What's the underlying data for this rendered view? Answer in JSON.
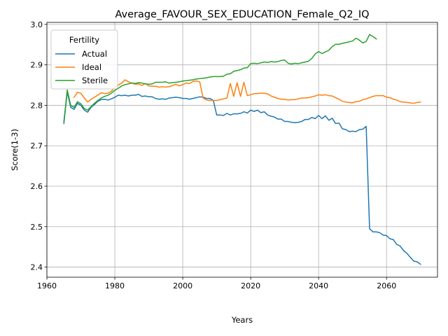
{
  "chart_data": {
    "type": "line",
    "title": "Average_FAVOUR_SEX_EDUCATION_Female_Q2_IQ",
    "xlabel": "Years",
    "ylabel": "Score(1-3)",
    "xlim": [
      1960,
      2075
    ],
    "ylim": [
      2.375,
      3.005
    ],
    "xticks": [
      1960,
      1980,
      2000,
      2020,
      2040,
      2060
    ],
    "xtick_labels": [
      "1960",
      "1980",
      "2000",
      "2020",
      "2040",
      "2060"
    ],
    "yticks": [
      2.4,
      2.5,
      2.6,
      2.7,
      2.8,
      2.9,
      3.0
    ],
    "ytick_labels": [
      "2.4",
      "2.5",
      "2.6",
      "2.7",
      "2.8",
      "2.9",
      "3.0"
    ],
    "grid": true,
    "legend": {
      "title": "Fertility",
      "position": "top-left"
    },
    "series": [
      {
        "name": "Actual",
        "color": "#1f77b4",
        "points": [
          [
            1965,
            2.755
          ],
          [
            1966,
            2.833
          ],
          [
            1967,
            2.795
          ],
          [
            1968,
            2.79
          ],
          [
            1969,
            2.805
          ],
          [
            1970,
            2.8
          ],
          [
            1971,
            2.788
          ],
          [
            1972,
            2.783
          ],
          [
            1973,
            2.795
          ],
          [
            1974,
            2.802
          ],
          [
            1975,
            2.81
          ],
          [
            1976,
            2.814
          ],
          [
            1977,
            2.815
          ],
          [
            1978,
            2.813
          ],
          [
            1979,
            2.816
          ],
          [
            1980,
            2.82
          ],
          [
            1981,
            2.825
          ],
          [
            1982,
            2.824
          ],
          [
            1983,
            2.825
          ],
          [
            1984,
            2.823
          ],
          [
            1985,
            2.825
          ],
          [
            1986,
            2.825
          ],
          [
            1987,
            2.827
          ],
          [
            1988,
            2.822
          ],
          [
            1989,
            2.823
          ],
          [
            1990,
            2.821
          ],
          [
            1991,
            2.821
          ],
          [
            1992,
            2.817
          ],
          [
            1993,
            2.815
          ],
          [
            1994,
            2.816
          ],
          [
            1995,
            2.815
          ],
          [
            1996,
            2.818
          ],
          [
            1997,
            2.819
          ],
          [
            1998,
            2.82
          ],
          [
            1999,
            2.819
          ],
          [
            2000,
            2.817
          ],
          [
            2001,
            2.817
          ],
          [
            2002,
            2.815
          ],
          [
            2003,
            2.817
          ],
          [
            2004,
            2.819
          ],
          [
            2005,
            2.821
          ],
          [
            2006,
            2.82
          ],
          [
            2007,
            2.817
          ],
          [
            2008,
            2.817
          ],
          [
            2009,
            2.812
          ],
          [
            2010,
            2.776
          ],
          [
            2011,
            2.776
          ],
          [
            2012,
            2.775
          ],
          [
            2013,
            2.78
          ],
          [
            2014,
            2.776
          ],
          [
            2015,
            2.779
          ],
          [
            2016,
            2.779
          ],
          [
            2017,
            2.78
          ],
          [
            2018,
            2.784
          ],
          [
            2019,
            2.781
          ],
          [
            2020,
            2.788
          ],
          [
            2021,
            2.785
          ],
          [
            2022,
            2.788
          ],
          [
            2023,
            2.782
          ],
          [
            2024,
            2.784
          ],
          [
            2025,
            2.776
          ],
          [
            2026,
            2.773
          ],
          [
            2027,
            2.771
          ],
          [
            2028,
            2.766
          ],
          [
            2029,
            2.766
          ],
          [
            2030,
            2.76
          ],
          [
            2031,
            2.76
          ],
          [
            2032,
            2.758
          ],
          [
            2033,
            2.757
          ],
          [
            2034,
            2.758
          ],
          [
            2035,
            2.76
          ],
          [
            2036,
            2.765
          ],
          [
            2037,
            2.765
          ],
          [
            2038,
            2.77
          ],
          [
            2039,
            2.767
          ],
          [
            2040,
            2.775
          ],
          [
            2041,
            2.767
          ],
          [
            2042,
            2.774
          ],
          [
            2043,
            2.763
          ],
          [
            2044,
            2.768
          ],
          [
            2045,
            2.755
          ],
          [
            2046,
            2.756
          ],
          [
            2047,
            2.742
          ],
          [
            2048,
            2.74
          ],
          [
            2049,
            2.735
          ],
          [
            2050,
            2.736
          ],
          [
            2051,
            2.735
          ],
          [
            2052,
            2.74
          ],
          [
            2053,
            2.741
          ],
          [
            2054,
            2.748
          ],
          [
            2055,
            2.495
          ],
          [
            2056,
            2.487
          ],
          [
            2057,
            2.487
          ],
          [
            2058,
            2.485
          ],
          [
            2059,
            2.479
          ],
          [
            2060,
            2.478
          ],
          [
            2061,
            2.47
          ],
          [
            2062,
            2.468
          ],
          [
            2063,
            2.456
          ],
          [
            2064,
            2.452
          ],
          [
            2065,
            2.441
          ],
          [
            2066,
            2.434
          ],
          [
            2067,
            2.424
          ],
          [
            2068,
            2.415
          ],
          [
            2069,
            2.413
          ],
          [
            2070,
            2.407
          ]
        ]
      },
      {
        "name": "Ideal",
        "color": "#ff7f0e",
        "points": [
          [
            1968,
            2.82
          ],
          [
            1969,
            2.832
          ],
          [
            1970,
            2.83
          ],
          [
            1971,
            2.818
          ],
          [
            1972,
            2.808
          ],
          [
            1973,
            2.815
          ],
          [
            1974,
            2.82
          ],
          [
            1975,
            2.825
          ],
          [
            1976,
            2.831
          ],
          [
            1977,
            2.829
          ],
          [
            1978,
            2.83
          ],
          [
            1979,
            2.835
          ],
          [
            1980,
            2.845
          ],
          [
            1981,
            2.85
          ],
          [
            1982,
            2.855
          ],
          [
            1983,
            2.863
          ],
          [
            1984,
            2.858
          ],
          [
            1985,
            2.855
          ],
          [
            1986,
            2.852
          ],
          [
            1987,
            2.853
          ],
          [
            1988,
            2.849
          ],
          [
            1989,
            2.854
          ],
          [
            1990,
            2.848
          ],
          [
            1991,
            2.847
          ],
          [
            1992,
            2.847
          ],
          [
            1993,
            2.845
          ],
          [
            1994,
            2.846
          ],
          [
            1995,
            2.845
          ],
          [
            1996,
            2.846
          ],
          [
            1997,
            2.849
          ],
          [
            1998,
            2.852
          ],
          [
            1999,
            2.848
          ],
          [
            2000,
            2.851
          ],
          [
            2001,
            2.855
          ],
          [
            2002,
            2.854
          ],
          [
            2003,
            2.859
          ],
          [
            2004,
            2.86
          ],
          [
            2005,
            2.858
          ],
          [
            2006,
            2.818
          ],
          [
            2007,
            2.813
          ],
          [
            2008,
            2.812
          ],
          [
            2009,
            2.812
          ],
          [
            2010,
            2.812
          ],
          [
            2011,
            2.814
          ],
          [
            2012,
            2.816
          ],
          [
            2013,
            2.818
          ],
          [
            2014,
            2.854
          ],
          [
            2015,
            2.822
          ],
          [
            2016,
            2.856
          ],
          [
            2017,
            2.822
          ],
          [
            2018,
            2.857
          ],
          [
            2019,
            2.824
          ],
          [
            2020,
            2.826
          ],
          [
            2021,
            2.829
          ],
          [
            2022,
            2.829
          ],
          [
            2023,
            2.83
          ],
          [
            2024,
            2.83
          ],
          [
            2025,
            2.828
          ],
          [
            2026,
            2.823
          ],
          [
            2027,
            2.82
          ],
          [
            2028,
            2.817
          ],
          [
            2029,
            2.815
          ],
          [
            2030,
            2.815
          ],
          [
            2031,
            2.813
          ],
          [
            2032,
            2.814
          ],
          [
            2033,
            2.814
          ],
          [
            2034,
            2.816
          ],
          [
            2035,
            2.818
          ],
          [
            2036,
            2.818
          ],
          [
            2037,
            2.819
          ],
          [
            2038,
            2.821
          ],
          [
            2039,
            2.823
          ],
          [
            2040,
            2.826
          ],
          [
            2041,
            2.825
          ],
          [
            2042,
            2.826
          ],
          [
            2043,
            2.824
          ],
          [
            2044,
            2.823
          ],
          [
            2045,
            2.819
          ],
          [
            2046,
            2.815
          ],
          [
            2047,
            2.81
          ],
          [
            2048,
            2.808
          ],
          [
            2049,
            2.807
          ],
          [
            2050,
            2.806
          ],
          [
            2051,
            2.809
          ],
          [
            2052,
            2.81
          ],
          [
            2053,
            2.814
          ],
          [
            2054,
            2.816
          ],
          [
            2055,
            2.819
          ],
          [
            2056,
            2.822
          ],
          [
            2057,
            2.824
          ],
          [
            2058,
            2.824
          ],
          [
            2059,
            2.824
          ],
          [
            2060,
            2.82
          ],
          [
            2061,
            2.819
          ],
          [
            2062,
            2.815
          ],
          [
            2063,
            2.813
          ],
          [
            2064,
            2.809
          ],
          [
            2065,
            2.808
          ],
          [
            2066,
            2.807
          ],
          [
            2067,
            2.806
          ],
          [
            2068,
            2.805
          ],
          [
            2069,
            2.807
          ],
          [
            2070,
            2.808
          ]
        ]
      },
      {
        "name": "Sterile",
        "color": "#2ca02c",
        "points": [
          [
            1965,
            2.76
          ],
          [
            1966,
            2.838
          ],
          [
            1967,
            2.8
          ],
          [
            1968,
            2.795
          ],
          [
            1969,
            2.809
          ],
          [
            1970,
            2.804
          ],
          [
            1971,
            2.792
          ],
          [
            1972,
            2.788
          ],
          [
            1973,
            2.797
          ],
          [
            1974,
            2.805
          ],
          [
            1975,
            2.812
          ],
          [
            1976,
            2.818
          ],
          [
            1977,
            2.822
          ],
          [
            1978,
            2.825
          ],
          [
            1979,
            2.83
          ],
          [
            1980,
            2.837
          ],
          [
            1981,
            2.842
          ],
          [
            1982,
            2.848
          ],
          [
            1983,
            2.851
          ],
          [
            1984,
            2.853
          ],
          [
            1985,
            2.855
          ],
          [
            1986,
            2.854
          ],
          [
            1987,
            2.856
          ],
          [
            1988,
            2.855
          ],
          [
            1989,
            2.853
          ],
          [
            1990,
            2.852
          ],
          [
            1991,
            2.853
          ],
          [
            1992,
            2.857
          ],
          [
            1993,
            2.857
          ],
          [
            1994,
            2.857
          ],
          [
            1995,
            2.858
          ],
          [
            1996,
            2.855
          ],
          [
            1997,
            2.856
          ],
          [
            1998,
            2.857
          ],
          [
            1999,
            2.858
          ],
          [
            2000,
            2.86
          ],
          [
            2001,
            2.861
          ],
          [
            2002,
            2.862
          ],
          [
            2003,
            2.863
          ],
          [
            2004,
            2.865
          ],
          [
            2005,
            2.866
          ],
          [
            2006,
            2.867
          ],
          [
            2007,
            2.868
          ],
          [
            2008,
            2.87
          ],
          [
            2009,
            2.871
          ],
          [
            2010,
            2.871
          ],
          [
            2011,
            2.871
          ],
          [
            2012,
            2.872
          ],
          [
            2013,
            2.877
          ],
          [
            2014,
            2.878
          ],
          [
            2015,
            2.884
          ],
          [
            2016,
            2.886
          ],
          [
            2017,
            2.888
          ],
          [
            2018,
            2.892
          ],
          [
            2019,
            2.893
          ],
          [
            2020,
            2.903
          ],
          [
            2021,
            2.904
          ],
          [
            2022,
            2.903
          ],
          [
            2023,
            2.905
          ],
          [
            2024,
            2.907
          ],
          [
            2025,
            2.906
          ],
          [
            2026,
            2.908
          ],
          [
            2027,
            2.907
          ],
          [
            2028,
            2.908
          ],
          [
            2029,
            2.911
          ],
          [
            2030,
            2.912
          ],
          [
            2031,
            2.904
          ],
          [
            2032,
            2.902
          ],
          [
            2033,
            2.904
          ],
          [
            2034,
            2.903
          ],
          [
            2035,
            2.905
          ],
          [
            2036,
            2.907
          ],
          [
            2037,
            2.909
          ],
          [
            2038,
            2.916
          ],
          [
            2039,
            2.927
          ],
          [
            2040,
            2.933
          ],
          [
            2041,
            2.928
          ],
          [
            2042,
            2.932
          ],
          [
            2043,
            2.936
          ],
          [
            2044,
            2.945
          ],
          [
            2045,
            2.951
          ],
          [
            2046,
            2.951
          ],
          [
            2047,
            2.953
          ],
          [
            2048,
            2.955
          ],
          [
            2049,
            2.957
          ],
          [
            2050,
            2.959
          ],
          [
            2051,
            2.966
          ],
          [
            2052,
            2.961
          ],
          [
            2053,
            2.954
          ],
          [
            2054,
            2.958
          ],
          [
            2055,
            2.975
          ],
          [
            2056,
            2.97
          ],
          [
            2057,
            2.964
          ]
        ]
      }
    ]
  }
}
